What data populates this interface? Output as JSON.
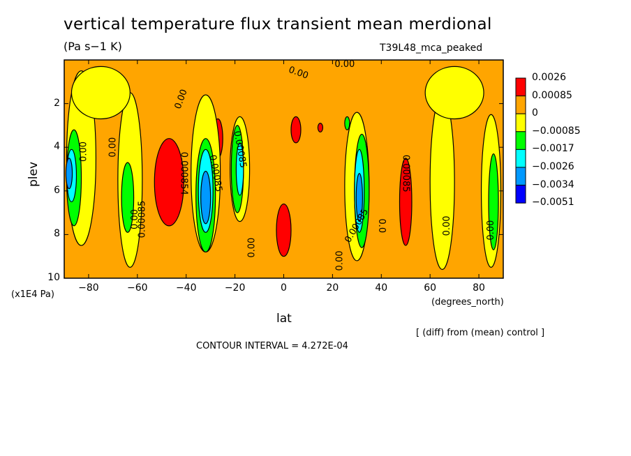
{
  "header": {
    "title": "vertical temperature flux transient mean merdional",
    "units": "(Pa s−1 K)",
    "experiment": "T39L48_mca_peaked"
  },
  "footer": {
    "difference_note": "[ (diff) from (mean) control ]",
    "contour_interval": "CONTOUR INTERVAL = 4.272E-04"
  },
  "chart_data": {
    "type": "heatmap",
    "xlabel": "lat",
    "x_units": "(degrees_north)",
    "ylabel": "plev",
    "y_units": "(x1E4 Pa)",
    "xlim": [
      -90,
      90
    ],
    "ylim": [
      10,
      0
    ],
    "x_ticks": [
      -80,
      -60,
      -40,
      -20,
      0,
      20,
      40,
      60,
      80
    ],
    "x_tick_labels": [
      "−80",
      "−60",
      "−40",
      "−20",
      "0",
      "20",
      "40",
      "60",
      "80"
    ],
    "y_ticks": [
      2,
      4,
      6,
      8,
      10
    ],
    "y_tick_labels": [
      "2",
      "4",
      "6",
      "8",
      "10"
    ],
    "colorbar": {
      "labels": [
        "0.0026",
        "0.00085",
        "0",
        "−0.00085",
        "−0.0017",
        "−0.0026",
        "−0.0034",
        "−0.0051"
      ],
      "colors": [
        "#ff0000",
        "#ffa500",
        "#ffff00",
        "#00ff00",
        "#00ffff",
        "#0099ff",
        "#0000ff"
      ]
    },
    "background_level_color": "#ffa500",
    "regions": [
      {
        "level": "positive_high",
        "color": "#ff0000",
        "lat_center": -47,
        "plev_center": 5.6,
        "lat_halfwidth": 6,
        "plev_halfwidth": 2.0
      },
      {
        "level": "positive_high",
        "color": "#ff0000",
        "lat_center": -27,
        "plev_center": 3.6,
        "lat_halfwidth": 2,
        "plev_halfwidth": 0.9
      },
      {
        "level": "positive_high",
        "color": "#ff0000",
        "lat_center": 0,
        "plev_center": 7.8,
        "lat_halfwidth": 3,
        "plev_halfwidth": 1.2
      },
      {
        "level": "positive_high",
        "color": "#ff0000",
        "lat_center": 5,
        "plev_center": 3.2,
        "lat_halfwidth": 2,
        "plev_halfwidth": 0.6
      },
      {
        "level": "positive_high",
        "color": "#ff0000",
        "lat_center": 50,
        "plev_center": 6.5,
        "lat_halfwidth": 2.5,
        "plev_halfwidth": 2.0
      },
      {
        "level": "positive_high",
        "color": "#ff0000",
        "lat_center": 15,
        "plev_center": 3.1,
        "lat_halfwidth": 1,
        "plev_halfwidth": 0.2
      },
      {
        "level": "near_zero",
        "color": "#ffff00",
        "lat_center": -83,
        "plev_center": 4.5,
        "lat_halfwidth": 6,
        "plev_halfwidth": 4
      },
      {
        "level": "near_zero",
        "color": "#ffff00",
        "lat_center": -63,
        "plev_center": 5.5,
        "lat_halfwidth": 5,
        "plev_halfwidth": 4
      },
      {
        "level": "near_zero",
        "color": "#ffff00",
        "lat_center": -32,
        "plev_center": 5.2,
        "lat_halfwidth": 6,
        "plev_halfwidth": 3.6
      },
      {
        "level": "near_zero",
        "color": "#ffff00",
        "lat_center": -18,
        "plev_center": 5.0,
        "lat_halfwidth": 4,
        "plev_halfwidth": 2.4
      },
      {
        "level": "near_zero",
        "color": "#ffff00",
        "lat_center": 30,
        "plev_center": 5.8,
        "lat_halfwidth": 5,
        "plev_halfwidth": 3.4
      },
      {
        "level": "near_zero",
        "color": "#ffff00",
        "lat_center": 65,
        "plev_center": 5.6,
        "lat_halfwidth": 5,
        "plev_halfwidth": 4
      },
      {
        "level": "near_zero",
        "color": "#ffff00",
        "lat_center": 85,
        "plev_center": 6,
        "lat_halfwidth": 4,
        "plev_halfwidth": 3.5
      },
      {
        "level": "near_zero",
        "color": "#ffff00",
        "lat_center": -75,
        "plev_center": 1.5,
        "lat_halfwidth": 12,
        "plev_halfwidth": 1.2
      },
      {
        "level": "near_zero",
        "color": "#ffff00",
        "lat_center": 70,
        "plev_center": 1.5,
        "lat_halfwidth": 12,
        "plev_halfwidth": 1.2
      },
      {
        "level": "negative_low",
        "color": "#00ff00",
        "lat_center": -64,
        "plev_center": 6.3,
        "lat_halfwidth": 2.5,
        "plev_halfwidth": 1.6
      },
      {
        "level": "negative_low",
        "color": "#00ff00",
        "lat_center": -32,
        "plev_center": 6.2,
        "lat_halfwidth": 4,
        "plev_halfwidth": 2.6
      },
      {
        "level": "negative_low",
        "color": "#00ff00",
        "lat_center": -19,
        "plev_center": 5.0,
        "lat_halfwidth": 2.5,
        "plev_halfwidth": 2.0
      },
      {
        "level": "negative_low",
        "color": "#00ff00",
        "lat_center": 32,
        "plev_center": 6.0,
        "lat_halfwidth": 3,
        "plev_halfwidth": 2.6
      },
      {
        "level": "negative_low",
        "color": "#00ff00",
        "lat_center": -86,
        "plev_center": 5.4,
        "lat_halfwidth": 3,
        "plev_halfwidth": 2.2
      },
      {
        "level": "negative_low",
        "color": "#00ff00",
        "lat_center": 86,
        "plev_center": 6.5,
        "lat_halfwidth": 2,
        "plev_halfwidth": 2.2
      },
      {
        "level": "negative_low",
        "color": "#00ff00",
        "lat_center": 26,
        "plev_center": 2.9,
        "lat_halfwidth": 1,
        "plev_halfwidth": 0.3
      },
      {
        "level": "negative_mid",
        "color": "#00ffff",
        "lat_center": -32,
        "plev_center": 6.0,
        "lat_halfwidth": 3,
        "plev_halfwidth": 1.9
      },
      {
        "level": "negative_mid",
        "color": "#00ffff",
        "lat_center": -18,
        "plev_center": 5.0,
        "lat_halfwidth": 1.5,
        "plev_halfwidth": 1.2
      },
      {
        "level": "negative_mid",
        "color": "#00ffff",
        "lat_center": 31,
        "plev_center": 6.0,
        "lat_halfwidth": 2,
        "plev_halfwidth": 1.9
      },
      {
        "level": "negative_mid",
        "color": "#00ffff",
        "lat_center": -87,
        "plev_center": 5.3,
        "lat_halfwidth": 2,
        "plev_halfwidth": 1.2
      },
      {
        "level": "negative_high",
        "color": "#0099ff",
        "lat_center": -32,
        "plev_center": 6.3,
        "lat_halfwidth": 2,
        "plev_halfwidth": 1.2
      },
      {
        "level": "negative_high",
        "color": "#0099ff",
        "lat_center": 31,
        "plev_center": 6.3,
        "lat_halfwidth": 1.3,
        "plev_halfwidth": 1.1
      },
      {
        "level": "negative_high",
        "color": "#0099ff",
        "lat_center": -88,
        "plev_center": 5.2,
        "lat_halfwidth": 1.3,
        "plev_halfwidth": 0.7
      }
    ],
    "contour_labels": [
      {
        "text": "0.00",
        "lat": -82,
        "plev": 4.2,
        "rotate": -90
      },
      {
        "text": "0.00",
        "lat": -70,
        "plev": 4.0,
        "rotate": -90
      },
      {
        "text": "0.00",
        "lat": -61,
        "plev": 7.3,
        "rotate": -90
      },
      {
        "text": "0.00085",
        "lat": -58,
        "plev": 7.3,
        "rotate": -90
      },
      {
        "text": "0.00",
        "lat": -42,
        "plev": 1.8,
        "rotate": -70
      },
      {
        "text": "0.000854",
        "lat": -41,
        "plev": 5.2,
        "rotate": 90
      },
      {
        "text": "0.00085",
        "lat": -28,
        "plev": 5.2,
        "rotate": 80
      },
      {
        "text": "0.00085",
        "lat": -18,
        "plev": 4.1,
        "rotate": 80
      },
      {
        "text": "0.00",
        "lat": -13,
        "plev": 8.6,
        "rotate": -90
      },
      {
        "text": "0.00",
        "lat": 6,
        "plev": 0.6,
        "rotate": 20
      },
      {
        "text": "0.00",
        "lat": 25,
        "plev": 0.2,
        "rotate": 0
      },
      {
        "text": "0.00",
        "lat": 23,
        "plev": 9.2,
        "rotate": -90
      },
      {
        "text": "0.0",
        "lat": 40,
        "plev": 7.6,
        "rotate": 90
      },
      {
        "text": "0.00085",
        "lat": 30,
        "plev": 7.6,
        "rotate": -60
      },
      {
        "text": "0.00085",
        "lat": 50,
        "plev": 5.2,
        "rotate": 90
      },
      {
        "text": "0.00",
        "lat": 67,
        "plev": 7.6,
        "rotate": -90
      },
      {
        "text": "0.00",
        "lat": 85,
        "plev": 7.8,
        "rotate": -90
      }
    ]
  }
}
